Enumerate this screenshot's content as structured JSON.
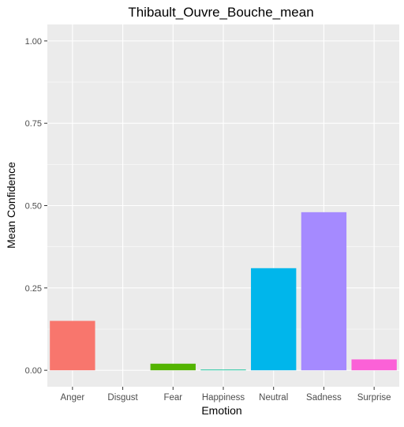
{
  "chart_data": {
    "type": "bar",
    "title": "Thibault_Ouvre_Bouche_mean",
    "xlabel": "Emotion",
    "ylabel": "Mean Confidence",
    "categories": [
      "Anger",
      "Disgust",
      "Fear",
      "Happiness",
      "Neutral",
      "Sadness",
      "Surprise"
    ],
    "values": [
      0.15,
      0.0,
      0.02,
      0.002,
      0.31,
      0.48,
      0.033
    ],
    "colors": [
      "#F8766D",
      "#C49A00",
      "#53B400",
      "#00C094",
      "#00B6EB",
      "#A58AFF",
      "#FB61D7"
    ],
    "ylim": [
      -0.05,
      1.05
    ],
    "yticks": [
      0.0,
      0.25,
      0.5,
      0.75,
      1.0
    ],
    "ytick_labels": [
      "0.00",
      "0.25",
      "0.50",
      "0.75",
      "1.00"
    ],
    "grid": true,
    "panel_background": "#EBEBEB",
    "grid_color": "#FFFFFF",
    "axis_text_color": "#4D4D4D"
  }
}
